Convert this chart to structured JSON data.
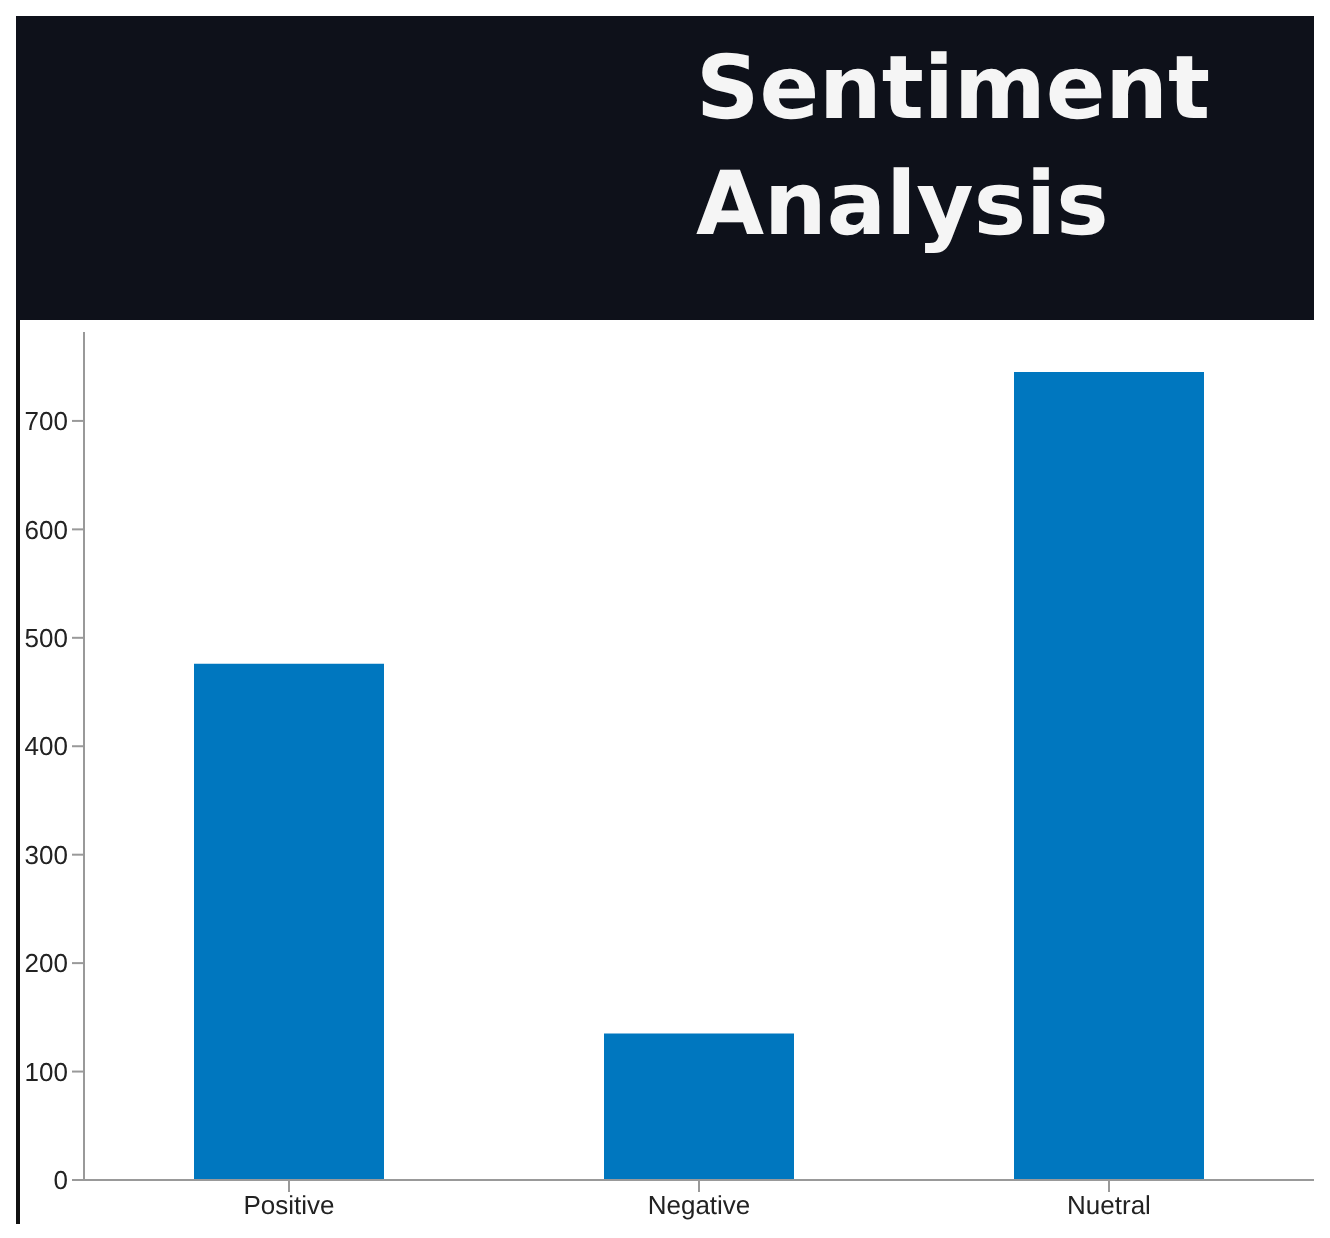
{
  "chart_data": {
    "type": "bar",
    "title": "Sentiment\nAnalysis",
    "categories": [
      "Positive",
      "Negative",
      "Nuetral"
    ],
    "values": [
      476,
      135,
      745
    ],
    "color": "#0077bf",
    "ylim": [
      0,
      782
    ],
    "yticks": [
      0,
      100,
      200,
      300,
      400,
      500,
      600,
      700
    ],
    "grid": false
  }
}
